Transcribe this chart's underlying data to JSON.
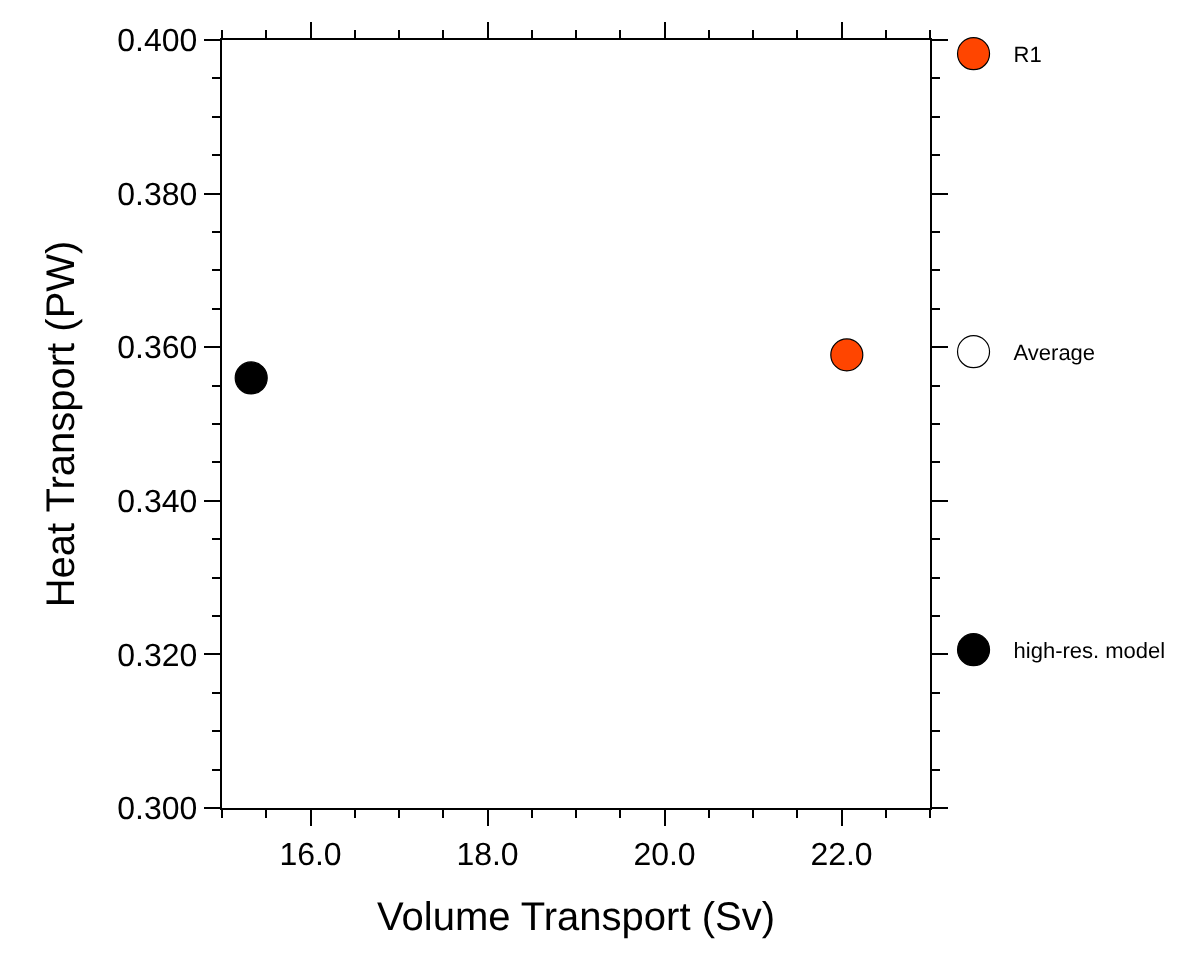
{
  "chart_data": {
    "type": "scatter",
    "xlabel": "Volume Transport (Sv)",
    "ylabel": "Heat Transport (PW)",
    "xlim": [
      15,
      23
    ],
    "xticks": [
      {
        "value": 16,
        "label": "16.0"
      },
      {
        "value": 18,
        "label": "18.0"
      },
      {
        "value": 20,
        "label": "20.0"
      },
      {
        "value": 22,
        "label": "22.0"
      }
    ],
    "ylim": [
      0.3,
      0.4
    ],
    "yticks": [
      {
        "value": 0.3,
        "label": "0.300"
      },
      {
        "value": 0.32,
        "label": "0.320"
      },
      {
        "value": 0.34,
        "label": "0.340"
      },
      {
        "value": 0.36,
        "label": "0.360"
      },
      {
        "value": 0.38,
        "label": "0.380"
      },
      {
        "value": 0.4,
        "label": "0.400"
      }
    ],
    "legend": "right",
    "marker": "circle",
    "series": [
      {
        "name": "R1",
        "color": "#ff4500",
        "x": [
          22.06
        ],
        "values": [
          0.359
        ]
      },
      {
        "name": "Average",
        "color": "#ffffff",
        "x": [
          null
        ],
        "values": [
          null
        ]
      },
      {
        "name": "high-res. model",
        "color": "#000000",
        "x": [
          15.33
        ],
        "values": [
          0.356
        ]
      }
    ]
  }
}
